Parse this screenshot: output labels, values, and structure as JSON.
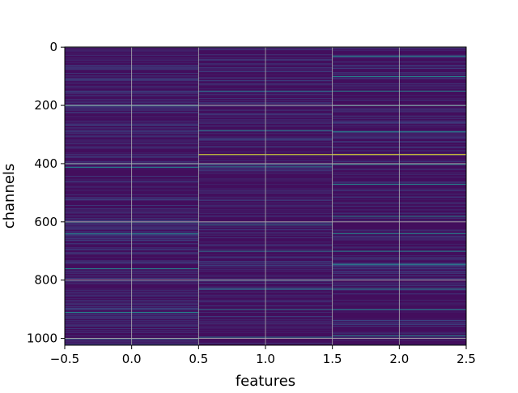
{
  "chart_data": {
    "type": "heatmap",
    "title": "",
    "xlabel": "features",
    "ylabel": "channels",
    "xlim": [
      -0.5,
      2.5
    ],
    "ylim": [
      1023.5,
      -0.5
    ],
    "y_inverted": true,
    "n_rows": 1024,
    "n_cols": 3,
    "colormap": "viridis",
    "value_range": [
      0,
      1
    ],
    "grid": true,
    "x_ticks": [
      -0.5,
      0.0,
      0.5,
      1.0,
      1.5,
      2.0,
      2.5
    ],
    "x_tick_labels": [
      "−0.5",
      "0.0",
      "0.5",
      "1.0",
      "1.5",
      "2.0",
      "2.5"
    ],
    "y_ticks": [
      0,
      200,
      400,
      600,
      800,
      1000
    ],
    "y_tick_labels": [
      "0",
      "200",
      "400",
      "600",
      "800",
      "1000"
    ],
    "background_level": 0.04,
    "highlights": [
      {
        "col": 0,
        "rows": [
          200,
          400,
          412,
          600,
          640,
          760,
          910,
          1000
        ],
        "value": 0.45
      },
      {
        "col": 1,
        "rows": [
          368
        ],
        "value": 0.95
      },
      {
        "col": 1,
        "rows": [
          150,
          285,
          400,
          410,
          610,
          700,
          830,
          900,
          995
        ],
        "value": 0.4
      },
      {
        "col": 2,
        "rows": [
          368
        ],
        "value": 0.98
      },
      {
        "col": 2,
        "rows": [
          30,
          100,
          150,
          200,
          290,
          402,
          470,
          580,
          640,
          700,
          745,
          830,
          900,
          990
        ],
        "value": 0.45
      }
    ]
  }
}
